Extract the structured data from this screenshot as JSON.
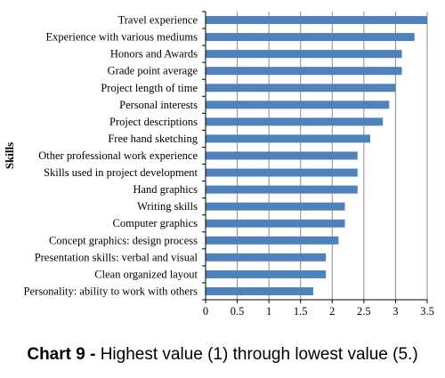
{
  "chart_data": {
    "type": "bar",
    "orientation": "horizontal",
    "ylabel": "Skills",
    "xlabel": "",
    "xlim": [
      0,
      3.5
    ],
    "xticks": [
      "0",
      "0.5",
      "1",
      "1.5",
      "2",
      "2.5",
      "3",
      "3.5"
    ],
    "grid": "vertical",
    "bar_color": "#4F81BD",
    "categories": [
      "Travel experience",
      "Experience with various mediums",
      "Honors and Awards",
      "Grade point average",
      "Project length of time",
      "Personal interests",
      "Project descriptions",
      "Free hand sketching",
      "Other professional work experience",
      "Skills used in project development",
      "Hand graphics",
      "Writing skills",
      "Computer graphics",
      "Concept graphics: design process",
      "Presentation skills: verbal and visual",
      "Clean organized layout",
      "Personality: ability to work with others"
    ],
    "values": [
      3.5,
      3.3,
      3.1,
      3.1,
      3.0,
      2.9,
      2.8,
      2.6,
      2.4,
      2.4,
      2.4,
      2.2,
      2.2,
      2.1,
      1.9,
      1.9,
      1.7
    ]
  },
  "caption": {
    "label": "Chart 9 -",
    "text": " Highest value (1) through lowest value (5.)"
  }
}
